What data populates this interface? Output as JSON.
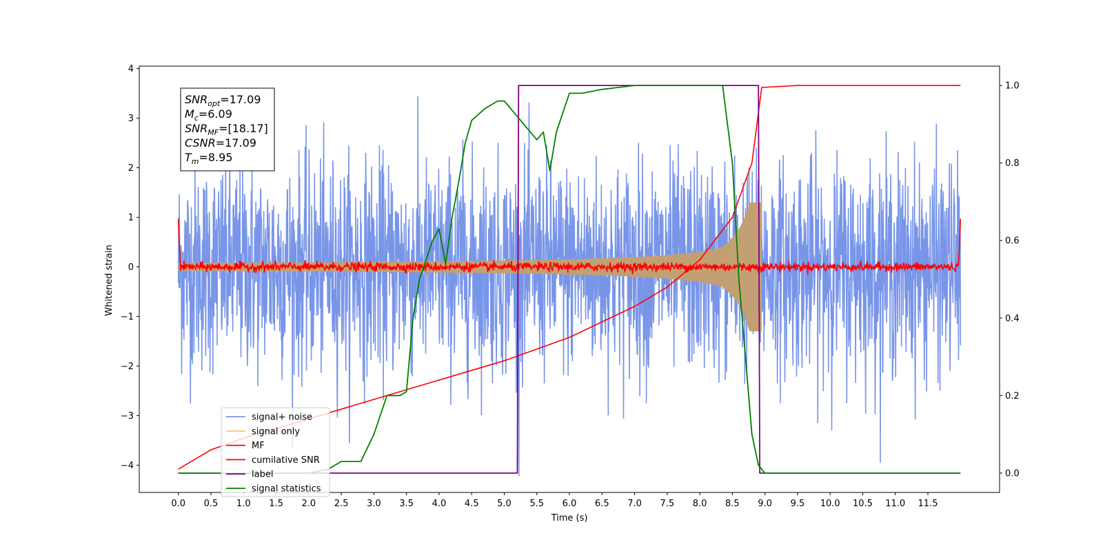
{
  "chart_data": {
    "type": "line",
    "title": "",
    "xlabel": "Time (s)",
    "ylabel": "Whitened strain",
    "xlim": [
      -0.6,
      12.6
    ],
    "ylim": [
      -4.55,
      4.05
    ],
    "ylim_right": [
      -0.05,
      1.05
    ],
    "x_ticks": [
      "0.0",
      "0.5",
      "1.0",
      "1.5",
      "2.0",
      "2.5",
      "3.0",
      "3.5",
      "4.0",
      "4.5",
      "5.0",
      "5.5",
      "6.0",
      "6.5",
      "7.0",
      "7.5",
      "8.0",
      "8.5",
      "9.0",
      "9.5",
      "10.0",
      "10.5",
      "11.0",
      "11.5"
    ],
    "y_ticks": [
      "4",
      "3",
      "2",
      "1",
      "0",
      "−1",
      "−2",
      "−3",
      "−4"
    ],
    "y_ticks_right": [
      "1.0",
      "0.8",
      "0.6",
      "0.4",
      "0.2",
      "0.0"
    ],
    "grid": false,
    "legend_position": "lower-left",
    "annotation": [
      {
        "base": "SNR",
        "sub": "opt",
        "rest": "=17.09"
      },
      {
        "base": "M",
        "sub": "c",
        "rest": "=6.09"
      },
      {
        "base": "SNR",
        "sub": "MF",
        "rest": "=[18.17]"
      },
      {
        "base": "CSNR",
        "sub": "",
        "rest": "=17.09"
      },
      {
        "base": "T",
        "sub": "m",
        "rest": "=8.95"
      }
    ],
    "series": [
      {
        "name": "signal+ noise",
        "color": "#7895e8",
        "axis": "left",
        "description_stats": {
          "x_range": [
            0,
            12
          ],
          "std": 1.0
        }
      },
      {
        "name": "signal only",
        "color": "#f5c97a",
        "axis": "left",
        "fill_color": "#c2a074",
        "envelope": {
          "t_merge": 8.95,
          "amplitude_at_0": 0.08,
          "amplitude_peak": 1.3
        }
      },
      {
        "name": "MF",
        "color": "#ff0000",
        "axis": "left",
        "start_value": 1.0,
        "end_value": 0.9
      },
      {
        "name": "cumilative SNR",
        "color": "#ff0000",
        "axis": "right",
        "x": [
          0,
          0.5,
          1.0,
          2.0,
          3.0,
          4.0,
          5.0,
          6.0,
          7.0,
          7.5,
          8.0,
          8.5,
          8.8,
          8.95,
          9.5,
          12.0
        ],
        "values": [
          0.01,
          0.06,
          0.09,
          0.14,
          0.19,
          0.24,
          0.29,
          0.35,
          0.43,
          0.48,
          0.55,
          0.66,
          0.8,
          0.995,
          1.0,
          1.0
        ]
      },
      {
        "name": "label",
        "color": "#800080",
        "axis": "right",
        "x": [
          0,
          5.2,
          5.22,
          8.9,
          8.92,
          12.0
        ],
        "values": [
          0.0,
          0.0,
          1.0,
          1.0,
          0.0,
          0.0
        ]
      },
      {
        "name": "signal statistics",
        "color": "#008000",
        "axis": "right",
        "x": [
          0.0,
          0.5,
          1.0,
          1.5,
          2.0,
          2.3,
          2.5,
          2.8,
          3.0,
          3.2,
          3.4,
          3.5,
          3.6,
          3.7,
          3.8,
          3.9,
          4.0,
          4.1,
          4.2,
          4.3,
          4.4,
          4.5,
          4.7,
          4.9,
          5.0,
          5.2,
          5.4,
          5.5,
          5.6,
          5.7,
          5.8,
          6.0,
          6.2,
          6.5,
          7.0,
          7.5,
          8.0,
          8.2,
          8.35,
          8.5,
          8.6,
          8.7,
          8.8,
          8.9,
          9.0,
          10.0,
          11.0,
          12.0
        ],
        "values": [
          0.0,
          0.0,
          0.0,
          0.0,
          0.0,
          0.01,
          0.03,
          0.03,
          0.1,
          0.2,
          0.2,
          0.21,
          0.4,
          0.5,
          0.55,
          0.6,
          0.63,
          0.54,
          0.66,
          0.75,
          0.85,
          0.91,
          0.94,
          0.96,
          0.96,
          0.92,
          0.88,
          0.86,
          0.88,
          0.78,
          0.88,
          0.98,
          0.98,
          0.99,
          1.0,
          1.0,
          1.0,
          1.0,
          1.0,
          0.8,
          0.5,
          0.3,
          0.1,
          0.02,
          0.0,
          0.0,
          0.0,
          0.0
        ]
      }
    ]
  }
}
